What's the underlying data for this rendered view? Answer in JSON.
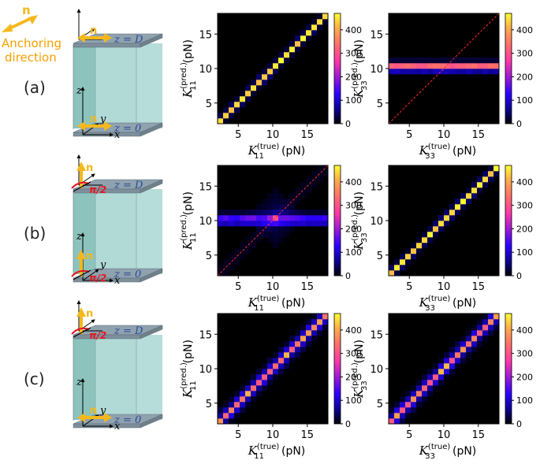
{
  "legend": {
    "n_label": "n",
    "anchoring_line1": "Anchoring",
    "anchoring_line2": "direction"
  },
  "colors": {
    "arrow": "#f5b81c",
    "panel_top": "#8fa2ae",
    "box_face": "#a9d6d3",
    "box_side": "#8cc3bd",
    "z_text": "#2b4a9a",
    "angle_red": "#e8141e",
    "diag_red": "#ff2d2d"
  },
  "rows": [
    {
      "label": "(a)",
      "x_angle_label": ""
    },
    {
      "label": "(b)",
      "angle_label": "π/2"
    },
    {
      "label": "(c)",
      "angle_label": "π/2"
    }
  ],
  "box_text": {
    "z_top": "z = D",
    "z_bottom": "z = 0",
    "axis_x": "x",
    "axis_y": "y",
    "axis_z": "z",
    "n_label": "n"
  },
  "colorbar_ticks": [
    "0",
    "100",
    "200",
    "300",
    "400"
  ],
  "chart_data": [
    {
      "type": "heatmap",
      "panel": "a-left",
      "xlabel_main": "K",
      "xlabel_sub": "11",
      "xlabel_sup": "(true)",
      "xlabel_unit": "(pN)",
      "ylabel_main": "K",
      "ylabel_sub": "11",
      "ylabel_sup": "(pred.)",
      "ylabel_unit": "(pN)",
      "xticks": [
        "5",
        "10",
        "15"
      ],
      "yticks": [
        "5",
        "10",
        "15"
      ],
      "pattern": "diagonal",
      "diag_line": false,
      "xlim": [
        2,
        18
      ],
      "ylim": [
        2,
        18
      ],
      "clim": [
        0,
        470
      ]
    },
    {
      "type": "heatmap",
      "panel": "a-right",
      "xlabel_main": "K",
      "xlabel_sub": "33",
      "xlabel_sup": "(true)",
      "xlabel_unit": "(pN)",
      "ylabel_main": "K",
      "ylabel_sub": "33",
      "ylabel_sup": "(pred.)",
      "ylabel_unit": "(pN)",
      "xticks": [
        "5",
        "10",
        "15"
      ],
      "yticks": [
        "5",
        "10",
        "15"
      ],
      "pattern": "horizontal",
      "band_value": 10.4,
      "diag_line": true,
      "xlim": [
        2,
        18
      ],
      "ylim": [
        2,
        18
      ],
      "clim": [
        0,
        470
      ]
    },
    {
      "type": "heatmap",
      "panel": "b-left",
      "xlabel_main": "K",
      "xlabel_sub": "11",
      "xlabel_sup": "(true)",
      "xlabel_unit": "(pN)",
      "ylabel_main": "K",
      "ylabel_sub": "11",
      "ylabel_sup": "(pred.)",
      "ylabel_unit": "(pN)",
      "xticks": [
        "5",
        "10",
        "15"
      ],
      "yticks": [
        "5",
        "10",
        "15"
      ],
      "pattern": "horizontal-dim",
      "band_value": 10.4,
      "diag_line": true,
      "xlim": [
        2,
        18
      ],
      "ylim": [
        2,
        18
      ],
      "clim": [
        0,
        470
      ]
    },
    {
      "type": "heatmap",
      "panel": "b-right",
      "xlabel_main": "K",
      "xlabel_sub": "33",
      "xlabel_sup": "(true)",
      "xlabel_unit": "(pN)",
      "ylabel_main": "K",
      "ylabel_sub": "33",
      "ylabel_sup": "(pred.)",
      "ylabel_unit": "(pN)",
      "xticks": [
        "5",
        "10",
        "15"
      ],
      "yticks": [
        "5",
        "10",
        "15"
      ],
      "pattern": "diagonal",
      "diag_line": false,
      "xlim": [
        2,
        18
      ],
      "ylim": [
        2,
        18
      ],
      "clim": [
        0,
        470
      ]
    },
    {
      "type": "heatmap",
      "panel": "c-left",
      "xlabel_main": "K",
      "xlabel_sub": "11",
      "xlabel_sup": "(true)",
      "xlabel_unit": "(pN)",
      "ylabel_main": "K",
      "ylabel_sub": "11",
      "ylabel_sup": "(pred.)",
      "ylabel_unit": "(pN)",
      "xticks": [
        "5",
        "10",
        "15"
      ],
      "yticks": [
        "5",
        "10",
        "15"
      ],
      "pattern": "diagonal-wide",
      "diag_line": false,
      "xlim": [
        2,
        18
      ],
      "ylim": [
        2,
        18
      ],
      "clim": [
        0,
        470
      ]
    },
    {
      "type": "heatmap",
      "panel": "c-right",
      "xlabel_main": "K",
      "xlabel_sub": "33",
      "xlabel_sup": "(true)",
      "xlabel_unit": "(pN)",
      "ylabel_main": "K",
      "ylabel_sub": "33",
      "ylabel_sup": "(pred.)",
      "ylabel_unit": "(pN)",
      "xticks": [
        "5",
        "10",
        "15"
      ],
      "yticks": [
        "5",
        "10",
        "15"
      ],
      "pattern": "diagonal-wide",
      "diag_line": false,
      "xlim": [
        2,
        18
      ],
      "ylim": [
        2,
        18
      ],
      "clim": [
        0,
        470
      ]
    }
  ]
}
